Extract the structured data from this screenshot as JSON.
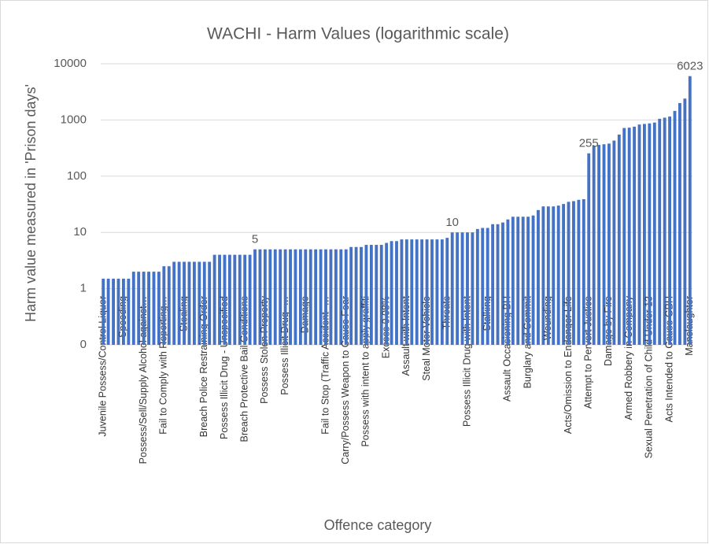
{
  "chart_data": {
    "type": "bar",
    "title": "WACHI - Harm Values (logarithmic scale)",
    "y_label": "Harm value measured in 'Prison days'",
    "x_label": "Offence category",
    "color": "#4472c4",
    "log_scale": true,
    "grid": true,
    "ylim": [
      0.1,
      10000
    ],
    "yticks": [
      {
        "value": 0.1,
        "label": "0"
      },
      1,
      10,
      100,
      1000,
      10000
    ],
    "labeled_indices": [
      30,
      69,
      96,
      116
    ],
    "categories": [
      "Juvenile Possess/Control Liquor",
      null,
      null,
      null,
      "Speeding",
      null,
      null,
      null,
      "Possess/Sell/Supply Alcohol against…",
      null,
      null,
      null,
      "Fail to Comply with Reporting…",
      null,
      null,
      null,
      "Stealing",
      null,
      null,
      null,
      "Breach Police Restraining Order",
      null,
      null,
      null,
      "Possess Illicit Drug - Unspecified",
      null,
      null,
      null,
      "Breach Protective Bail Conditions",
      null,
      null,
      null,
      "Possess Stolen Property",
      null,
      null,
      null,
      "Possess Illicit Drug -…",
      null,
      null,
      null,
      "Damage",
      null,
      null,
      null,
      "Fail to Stop (Traffic Accident -…",
      null,
      null,
      null,
      "Carry/Possess Weapon to Cause Fear",
      null,
      null,
      null,
      "Possess with intent to apply graffiti",
      null,
      null,
      null,
      "Excess 0.08%",
      null,
      null,
      null,
      "Assault with Intent",
      null,
      null,
      null,
      "Steal Motor Vehicle",
      null,
      null,
      null,
      "Threats",
      null,
      null,
      null,
      "Possess Illicit Drug with Intent",
      null,
      null,
      null,
      "Stalking",
      null,
      null,
      null,
      "Assault Occasioning BH",
      null,
      null,
      null,
      "Burglary and Commit",
      null,
      null,
      null,
      "Wounding",
      null,
      null,
      null,
      "Acts/Omission to Endanger Life",
      null,
      null,
      null,
      "Attempt to Pervert Justice",
      null,
      null,
      null,
      "Damage by Fire",
      null,
      null,
      null,
      "Armed Robbery in Company",
      null,
      null,
      null,
      "Sexual Penetration of Child Under 13",
      null,
      null,
      null,
      "Acts Intended to Cause GBH",
      null,
      null,
      null,
      "Manslaughter"
    ],
    "values": [
      1.5,
      1.5,
      1.5,
      1.5,
      1.5,
      1.5,
      2,
      2,
      2,
      2,
      2,
      2,
      2.5,
      2.5,
      3,
      3,
      3,
      3,
      3,
      3,
      3,
      3,
      4,
      4,
      4,
      4,
      4,
      4,
      4,
      4,
      5,
      5,
      5,
      5,
      5,
      5,
      5,
      5,
      5,
      5,
      5,
      5,
      5,
      5,
      5,
      5,
      5,
      5,
      5,
      5.5,
      5.5,
      5.5,
      6,
      6,
      6,
      6,
      6.5,
      7,
      7,
      7.5,
      7.5,
      7.5,
      7.5,
      7.5,
      7.5,
      7.5,
      7.5,
      7.5,
      8,
      10,
      10,
      10,
      10,
      10,
      11.5,
      12,
      12,
      14,
      14,
      15,
      17,
      19,
      19,
      19,
      19,
      20,
      25,
      29,
      29,
      29,
      30,
      32,
      35,
      36,
      38,
      39,
      255,
      350,
      360,
      370,
      380,
      430,
      550,
      720,
      730,
      760,
      830,
      850,
      870,
      900,
      1050,
      1100,
      1150,
      1450,
      2000,
      2400,
      6023
    ]
  }
}
